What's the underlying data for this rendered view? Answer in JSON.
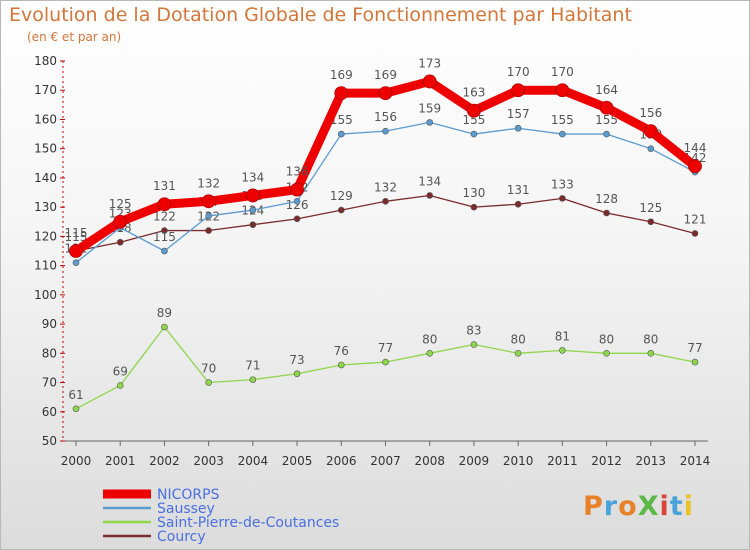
{
  "title": "Evolution de la Dotation Globale de Fonctionnement par Habitant",
  "subtitle": "(en € et par an)",
  "logo": "ProXiti",
  "colors": {
    "title": "#d2763a",
    "axis": "#c00000",
    "legend_text": "#4a6fe0",
    "label_text": "#555555"
  },
  "chart_data": {
    "type": "line",
    "title": "Evolution de la Dotation Globale de Fonctionnement par Habitant",
    "subtitle": "(en € et par an)",
    "xlabel": "",
    "ylabel": "",
    "x": [
      "2000",
      "2001",
      "2002",
      "2003",
      "2004",
      "2005",
      "2006",
      "2007",
      "2008",
      "2009",
      "2010",
      "2011",
      "2012",
      "2013",
      "2014"
    ],
    "ylim": [
      50,
      180
    ],
    "yticks": [
      50,
      60,
      70,
      80,
      90,
      100,
      110,
      120,
      130,
      140,
      150,
      160,
      170,
      180
    ],
    "grid": false,
    "legend_position": "bottom-left",
    "series": [
      {
        "name": "NICORPS",
        "color": "#ee0000",
        "values": [
          115,
          125,
          131,
          132,
          134,
          136,
          169,
          169,
          173,
          163,
          170,
          170,
          164,
          156,
          144
        ]
      },
      {
        "name": "Saussey",
        "color": "#5b9bd0",
        "values": [
          111,
          123,
          115,
          127,
          129,
          132,
          155,
          156,
          159,
          155,
          157,
          155,
          155,
          150,
          142
        ]
      },
      {
        "name": "Saint-Pierre-de-Coutances",
        "color": "#8ed64a",
        "values": [
          61,
          69,
          89,
          70,
          71,
          73,
          76,
          77,
          80,
          83,
          80,
          81,
          80,
          80,
          77
        ]
      },
      {
        "name": "Courcy",
        "color": "#7b2b2b",
        "values": [
          115,
          118,
          122,
          122,
          124,
          126,
          129,
          132,
          134,
          130,
          131,
          133,
          128,
          125,
          121
        ]
      }
    ]
  }
}
